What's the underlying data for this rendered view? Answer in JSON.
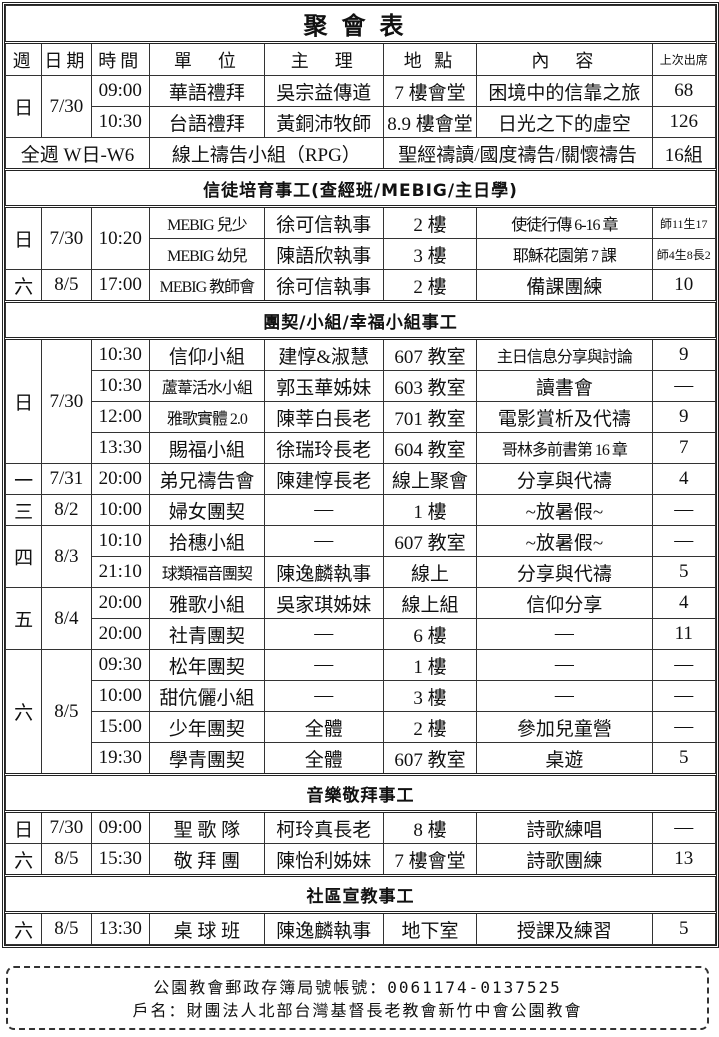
{
  "title": "聚會表",
  "headers": [
    "週",
    "日期",
    "時間",
    "單　位",
    "主　理",
    "地 點",
    "內　容",
    "上次出席"
  ],
  "worship": {
    "day": "日",
    "date": "7/30",
    "rows": [
      {
        "time": "09:00",
        "unit": "華語禮拜",
        "leader": "吳宗益傳道",
        "place": "7 樓會堂",
        "content": "困境中的信靠之旅",
        "attendance": "68"
      },
      {
        "time": "10:30",
        "unit": "台語禮拜",
        "leader": "黃銅沛牧師",
        "place": "8.9 樓會堂",
        "content": "日光之下的虛空",
        "attendance": "126"
      }
    ],
    "prayer": {
      "when": "全週 W日-W6",
      "unit": "線上禱告小組（RPG）",
      "content": "聖經禱讀/國度禱告/關懷禱告",
      "attendance": "16組"
    }
  },
  "sections": [
    {
      "title": "信徒培育事工(查經班/MEBIG/主日學)",
      "groups": [
        {
          "day": "日",
          "date": "7/30",
          "time": "10:20",
          "rows": [
            {
              "unit": "MEBIG 兒少",
              "leader": "徐可信執事",
              "place": "2 樓",
              "content": "使徒行傳 6-16 章",
              "attendance": "師11生17"
            },
            {
              "unit": "MEBIG 幼兒",
              "leader": "陳語欣執事",
              "place": "3 樓",
              "content": "耶穌花園第 7 課",
              "attendance": "師4生8長2"
            }
          ]
        },
        {
          "day": "六",
          "date": "8/5",
          "rows": [
            {
              "time": "17:00",
              "unit": "MEBIG 教師會",
              "leader": "徐可信執事",
              "place": "2 樓",
              "content": "備課團練",
              "attendance": "10"
            }
          ]
        }
      ]
    },
    {
      "title": "團契/小組/幸福小組事工",
      "groups": [
        {
          "day": "日",
          "date": "7/30",
          "rows": [
            {
              "time": "10:30",
              "unit": "信仰小組",
              "leader": "建惇&淑慧",
              "place": "607 教室",
              "content": "主日信息分享與討論",
              "attendance": "9"
            },
            {
              "time": "10:30",
              "unit": "蘆葦活水小組",
              "leader": "郭玉華姊妹",
              "place": "603 教室",
              "content": "讀書會",
              "attendance": "—"
            },
            {
              "time": "12:00",
              "unit": "雅歌實體 2.0",
              "leader": "陳莘白長老",
              "place": "701 教室",
              "content": "電影賞析及代禱",
              "attendance": "9"
            },
            {
              "time": "13:30",
              "unit": "賜福小組",
              "leader": "徐瑞玲長老",
              "place": "604 教室",
              "content": "哥林多前書第 16 章",
              "attendance": "7"
            }
          ]
        },
        {
          "day": "一",
          "date": "7/31",
          "rows": [
            {
              "time": "20:00",
              "unit": "弟兄禱告會",
              "leader": "陳建惇長老",
              "place": "線上聚會",
              "content": "分享與代禱",
              "attendance": "4"
            }
          ]
        },
        {
          "day": "三",
          "date": "8/2",
          "rows": [
            {
              "time": "10:00",
              "unit": "婦女團契",
              "leader": "—",
              "place": "1 樓",
              "content": "~放暑假~",
              "attendance": "—"
            }
          ]
        },
        {
          "day": "四",
          "date": "8/3",
          "rows": [
            {
              "time": "10:10",
              "unit": "拾穗小組",
              "leader": "—",
              "place": "607 教室",
              "content": "~放暑假~",
              "attendance": "—"
            },
            {
              "time": "21:10",
              "unit": "球類福音團契",
              "leader": "陳逸麟執事",
              "place": "線上",
              "content": "分享與代禱",
              "attendance": "5"
            }
          ]
        },
        {
          "day": "五",
          "date": "8/4",
          "rows": [
            {
              "time": "20:00",
              "unit": "雅歌小組",
              "leader": "吳家琪姊妹",
              "place": "線上組",
              "content": "信仰分享",
              "attendance": "4"
            },
            {
              "time": "20:00",
              "unit": "社青團契",
              "leader": "—",
              "place": "6 樓",
              "content": "—",
              "attendance": "11"
            }
          ]
        },
        {
          "day": "六",
          "date": "8/5",
          "rows": [
            {
              "time": "09:30",
              "unit": "松年團契",
              "leader": "—",
              "place": "1 樓",
              "content": "—",
              "attendance": "—"
            },
            {
              "time": "10:00",
              "unit": "甜伉儷小組",
              "leader": "—",
              "place": "3 樓",
              "content": "—",
              "attendance": "—"
            },
            {
              "time": "15:00",
              "unit": "少年團契",
              "leader": "全體",
              "place": "2 樓",
              "content": "參加兒童營",
              "attendance": "—"
            },
            {
              "time": "19:30",
              "unit": "學青團契",
              "leader": "全體",
              "place": "607 教室",
              "content": "桌遊",
              "attendance": "5"
            }
          ]
        }
      ]
    },
    {
      "title": "音樂敬拜事工",
      "groups": [
        {
          "day": "日",
          "date": "7/30",
          "rows": [
            {
              "time": "09:00",
              "unit": "聖 歌 隊",
              "leader": "柯玲真長老",
              "place": "8 樓",
              "content": "詩歌練唱",
              "attendance": "—"
            }
          ]
        },
        {
          "day": "六",
          "date": "8/5",
          "rows": [
            {
              "time": "15:30",
              "unit": "敬 拜 團",
              "leader": "陳怡利姊妹",
              "place": "7 樓會堂",
              "content": "詩歌團練",
              "attendance": "13"
            }
          ]
        }
      ]
    },
    {
      "title": "社區宣教事工",
      "groups": [
        {
          "day": "六",
          "date": "8/5",
          "rows": [
            {
              "time": "13:30",
              "unit": "桌 球 班",
              "leader": "陳逸麟執事",
              "place": "地下室",
              "content": "授課及練習",
              "attendance": "5"
            }
          ]
        }
      ]
    }
  ],
  "footer": {
    "line1": "公園教會郵政存簿局號帳號：0061174-0137525",
    "line2": "戶名：財團法人北部台灣基督長老教會新竹中會公園教會"
  }
}
